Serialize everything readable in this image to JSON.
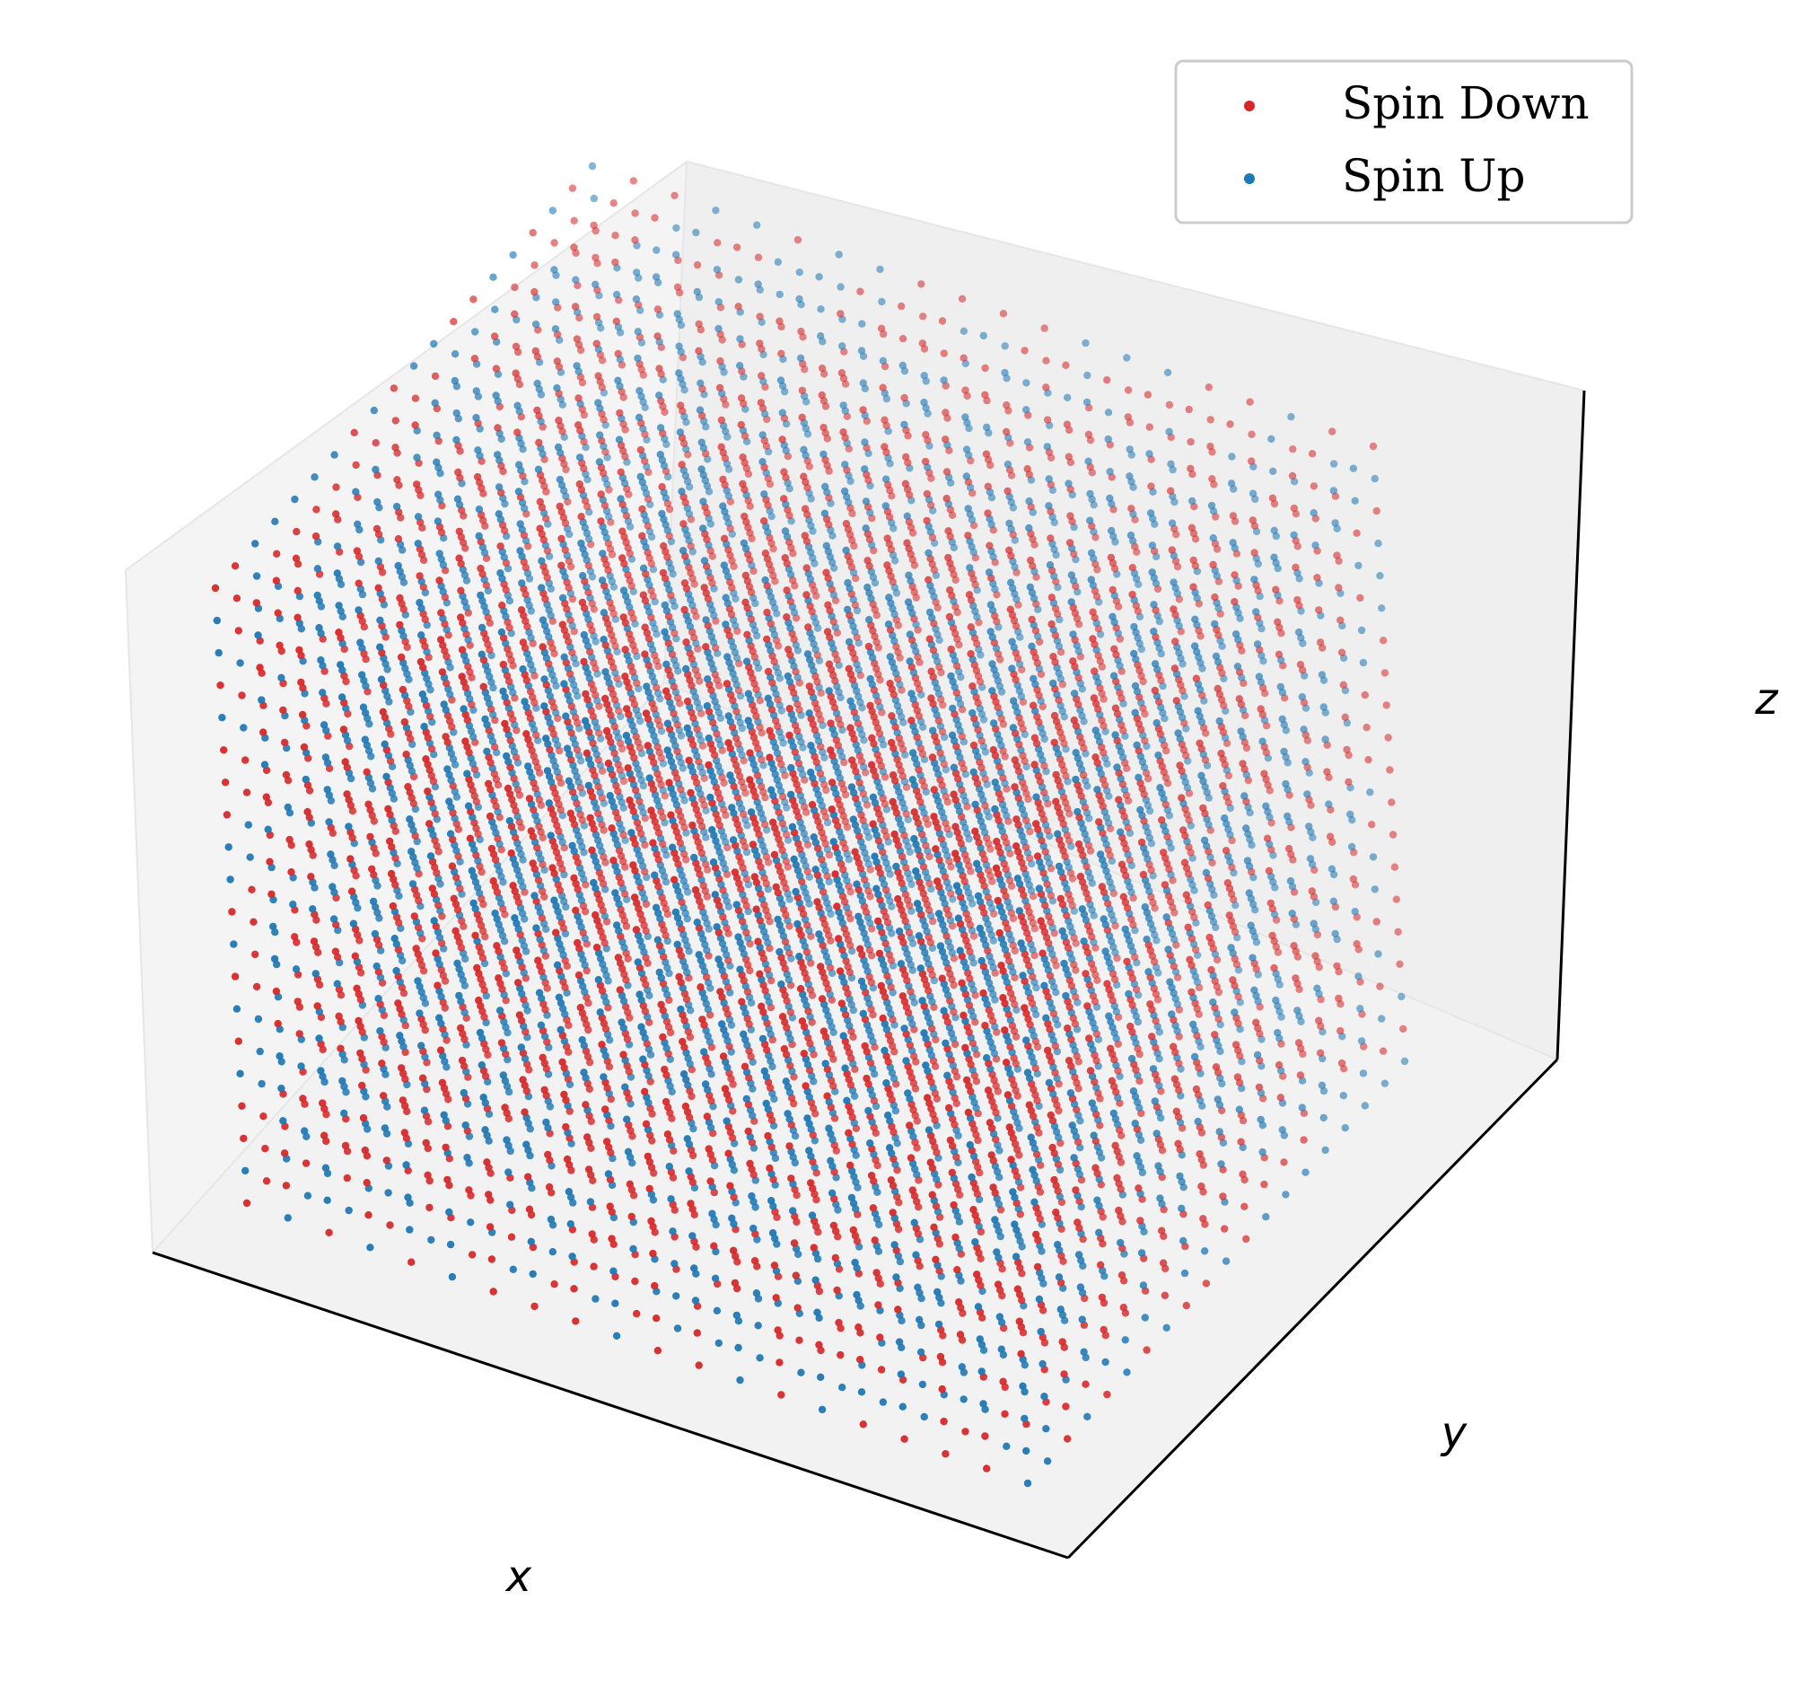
{
  "colors": {
    "spin_down": "#d62728",
    "spin_up": "#1f77b4",
    "pane_left": "#f4f4f4",
    "pane_right": "#efefef",
    "pane_floor": "#f2f2f2",
    "axis_line": "#000000",
    "legend_border": "#cccccc"
  },
  "chart_data": {
    "type": "scatter",
    "projection": "3d",
    "title": "",
    "xlabel": "x",
    "ylabel": "y",
    "zlabel": "z",
    "tick_labels": "hidden",
    "grid": false,
    "legend_position": "top-right",
    "lattice": {
      "points_per_axis": 20,
      "x_range": [
        0,
        19
      ],
      "y_range": [
        0,
        19
      ],
      "z_range": [
        0,
        19
      ],
      "total_sites": 8000
    },
    "series": [
      {
        "name": "Spin Down",
        "color": "#d62728",
        "marker": "point"
      },
      {
        "name": "Spin Up",
        "color": "#1f77b4",
        "marker": "point"
      }
    ]
  }
}
